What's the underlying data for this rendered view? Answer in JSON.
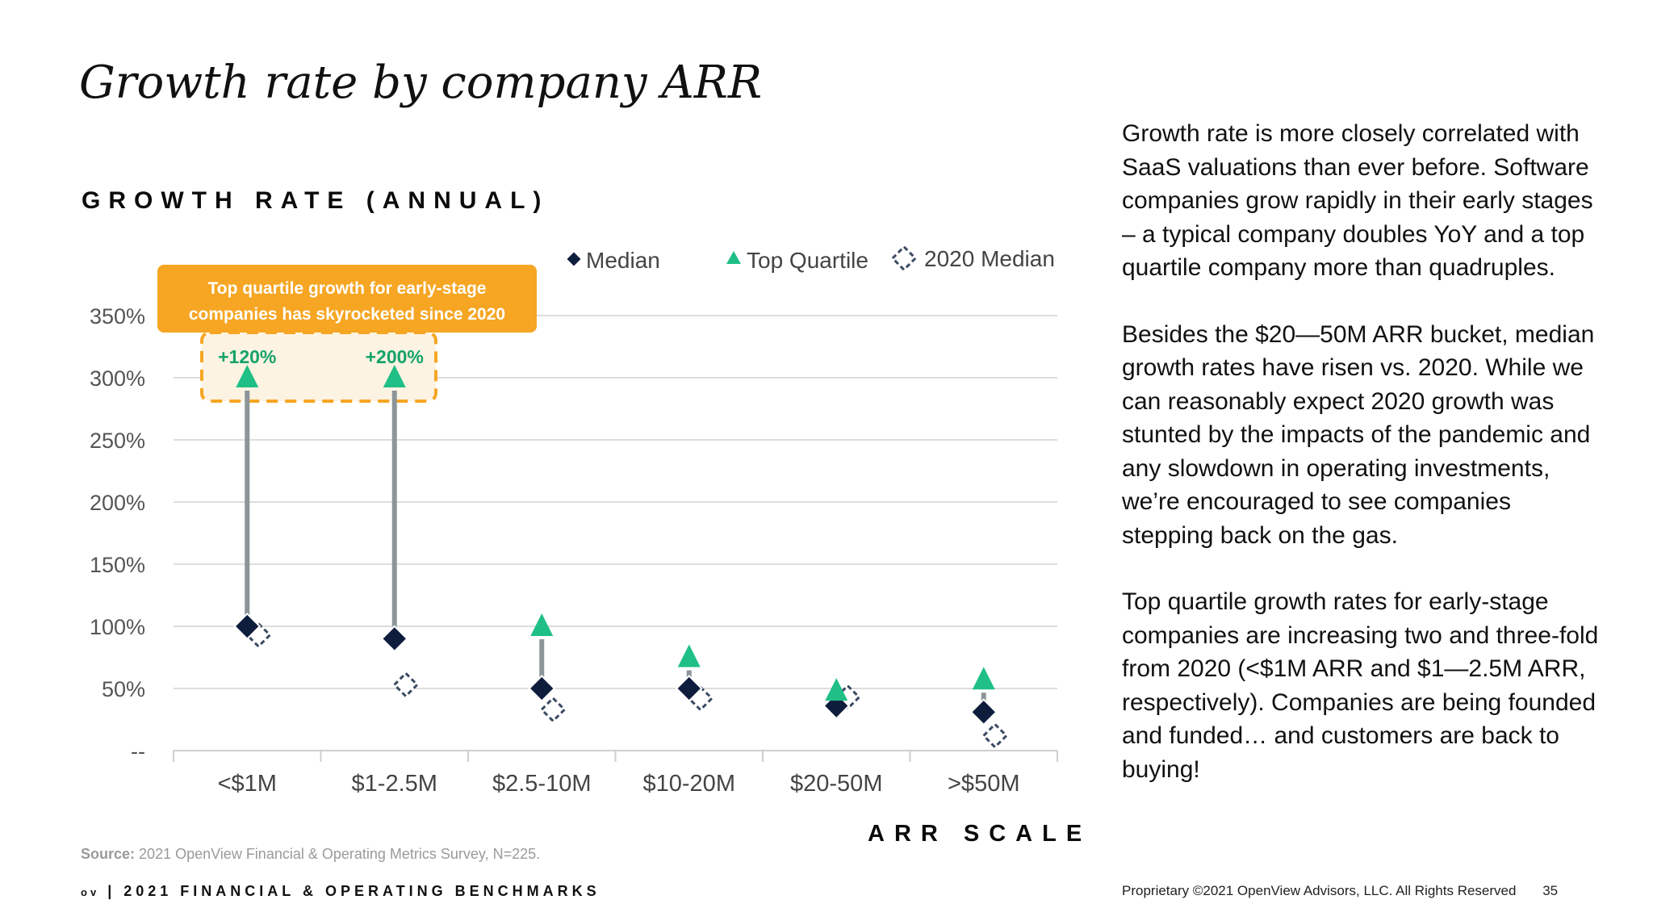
{
  "title": "Growth rate by company ARR",
  "chart_data": {
    "type": "scatter",
    "title": "GROWTH RATE (ANNUAL)",
    "xlabel": "ARR SCALE",
    "ylabel": "",
    "categories": [
      "<$1M",
      "$1-2.5M",
      "$2.5-10M",
      "$10-20M",
      "$20-50M",
      ">$50M"
    ],
    "y_ticks": [
      "--",
      "50%",
      "100%",
      "150%",
      "200%",
      "250%",
      "300%",
      "350%"
    ],
    "ylim": [
      0,
      350
    ],
    "grid": true,
    "legend_position": "top",
    "series": [
      {
        "name": "Median",
        "values": [
          100,
          90,
          50,
          50,
          36,
          31
        ]
      },
      {
        "name": "Top Quartile",
        "values": [
          300,
          300,
          100,
          75,
          48,
          57
        ]
      },
      {
        "name": "2020 Median",
        "values": [
          93,
          53,
          33,
          42,
          43,
          12
        ]
      }
    ],
    "annotations": {
      "callout": "Top quartile growth for early-stage companies has skyrocketed since 2020",
      "deltas": [
        "+120%",
        "+200%"
      ]
    }
  },
  "commentary": [
    "Growth rate is more closely correlated with SaaS valuations than ever before. Software companies grow rapidly in their early stages – a typical company doubles YoY and a top quartile company more than quadruples.",
    "Besides the $20—50M ARR bucket, median growth rates have risen vs. 2020. While we can reasonably expect 2020 growth was stunted by the impacts of the pandemic and any slowdown in operating investments, we’re encouraged to see companies stepping back on the gas.",
    "Top quartile growth rates for early-stage companies are increasing two and three-fold from 2020 (<$1M ARR and $1—2.5M ARR, respectively). Companies are being founded and funded… and customers are back to buying!"
  ],
  "source": {
    "label": "Source:",
    "text": "2021 OpenView Financial & Operating Metrics Survey, N=225."
  },
  "footer": {
    "logo": "ov",
    "divider": "|",
    "report": "2021 FINANCIAL & OPERATING BENCHMARKS",
    "copyright": "Proprietary ©2021 OpenView Advisors, LLC. All Rights Reserved",
    "page": "35"
  },
  "colors": {
    "median": "#0f1d3d",
    "top_quartile": "#1fbf86",
    "median_2020": "#3a4a63",
    "arrow": "#8c9597",
    "callout_bg": "#f6a623",
    "callout_fill": "#fdf3e3",
    "delta_text": "#14a36a",
    "grid": "#dddddd"
  }
}
